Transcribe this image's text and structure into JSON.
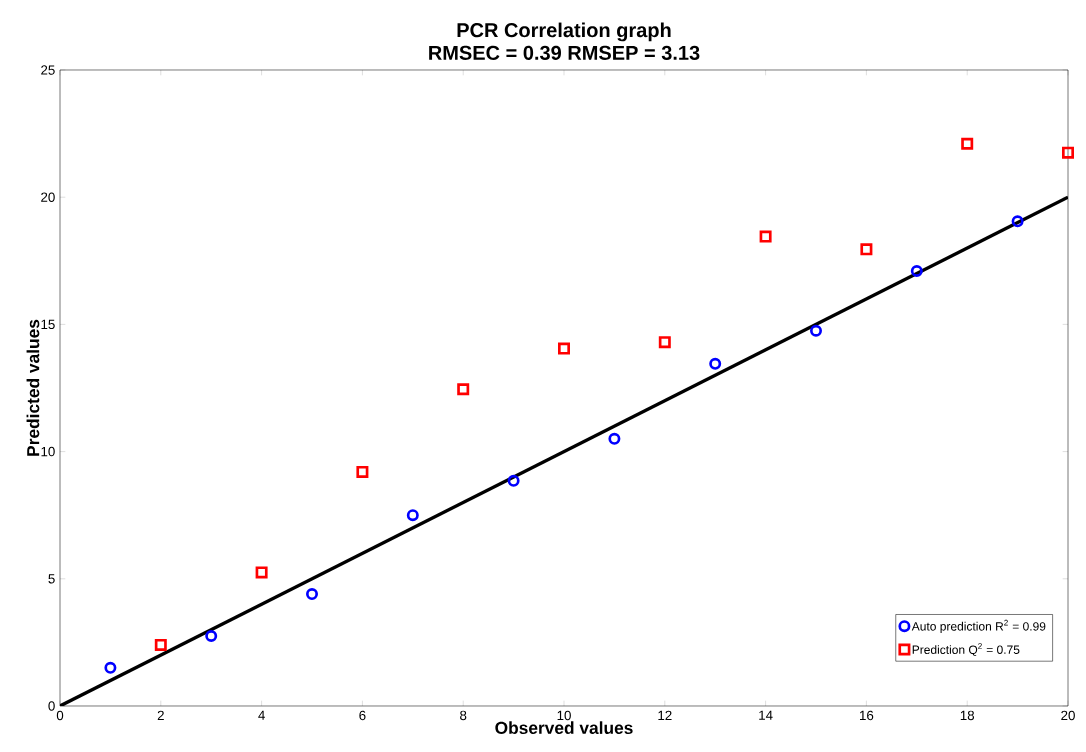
{
  "chart_data": {
    "type": "scatter",
    "title": "PCR Correlation graph",
    "subtitle": "RMSEC = 0.39   RMSEP = 3.13",
    "xlabel": "Observed values",
    "ylabel": "Predicted values",
    "xlim": [
      0,
      20
    ],
    "ylim": [
      0,
      25
    ],
    "xticks": [
      0,
      2,
      4,
      6,
      8,
      10,
      12,
      14,
      16,
      18,
      20
    ],
    "yticks": [
      0,
      5,
      10,
      15,
      20,
      25
    ],
    "grid": false,
    "legend": "bottom right",
    "series": [
      {
        "name": "Auto prediction R$^{2}$ = 0.99",
        "color": "#0000ff",
        "marker": "circle",
        "x": [
          1,
          3,
          5,
          7,
          9,
          11,
          13,
          15,
          17,
          19
        ],
        "values": [
          1.5,
          2.75,
          4.4,
          7.5,
          8.85,
          10.5,
          13.45,
          14.75,
          17.1,
          19.05
        ]
      },
      {
        "name": "Prediction Q$^{2}$ = 0.75",
        "color": "#ff0000",
        "marker": "square",
        "x": [
          2,
          4,
          6,
          8,
          10,
          12,
          14,
          16,
          18,
          20
        ],
        "values": [
          2.4,
          5.25,
          9.2,
          12.45,
          14.05,
          14.3,
          18.45,
          17.95,
          22.1,
          21.75
        ]
      },
      {
        "type": "line",
        "color": "#000000",
        "marker": "none",
        "line_style": "solid",
        "x": [
          0,
          20
        ],
        "values": [
          0,
          20
        ]
      }
    ]
  }
}
